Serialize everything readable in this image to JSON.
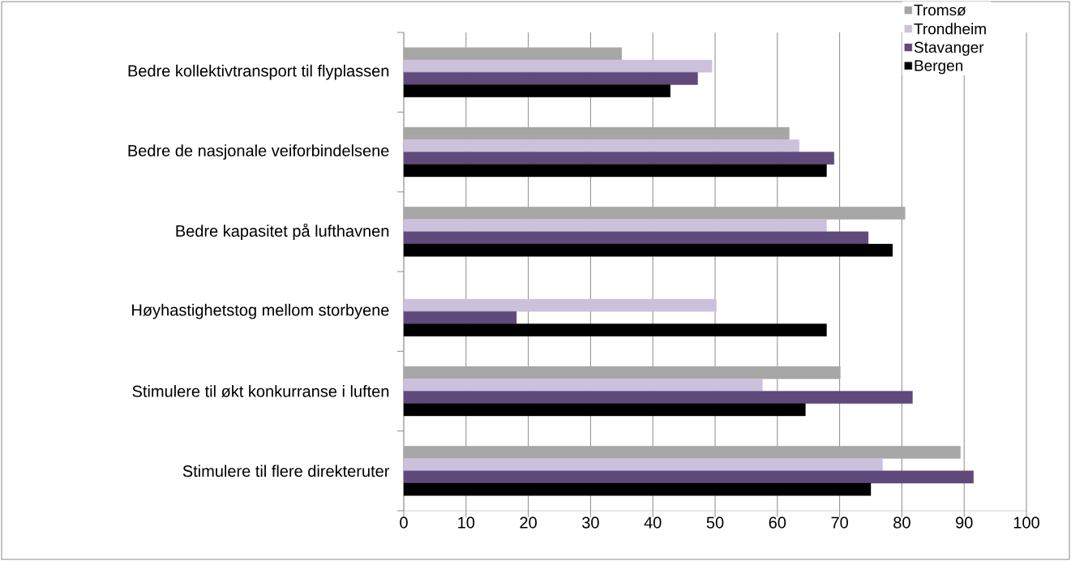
{
  "chart_data": {
    "type": "bar",
    "orientation": "horizontal",
    "categories": [
      "Bedre kollektivtransport til flyplassen",
      "Bedre de nasjonale veiforbindelsene",
      "Bedre kapasitet på lufthavnen",
      "Høyhastighetstog mellom storbyene",
      "Stimulere til økt konkurranse i luften",
      "Stimulere til flere direkteruter"
    ],
    "series": [
      {
        "name": "Tromsø",
        "color": "#a6a6a6",
        "values": [
          35.0,
          61.9,
          80.5,
          null,
          70.1,
          89.4
        ]
      },
      {
        "name": "Trondheim",
        "color": "#ccc1da",
        "values": [
          49.5,
          63.5,
          67.9,
          50.2,
          57.6,
          76.9
        ]
      },
      {
        "name": "Stavanger",
        "color": "#604a7b",
        "values": [
          47.2,
          69.1,
          74.6,
          18.1,
          81.7,
          91.5
        ]
      },
      {
        "name": "Bergen",
        "color": "#000000",
        "values": [
          42.8,
          67.9,
          78.5,
          67.9,
          64.5,
          75.0
        ]
      }
    ],
    "xlim": [
      0,
      100
    ],
    "xticks": [
      0,
      10,
      20,
      30,
      40,
      50,
      60,
      70,
      80,
      90,
      100
    ],
    "grid": "x",
    "legend": "top right"
  }
}
